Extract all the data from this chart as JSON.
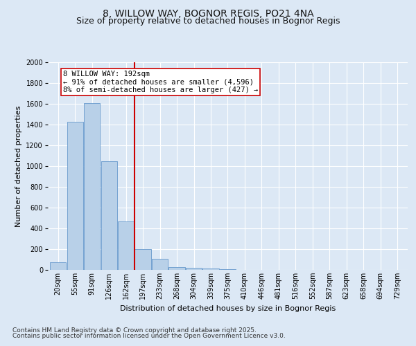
{
  "title1": "8, WILLOW WAY, BOGNOR REGIS, PO21 4NA",
  "title2": "Size of property relative to detached houses in Bognor Regis",
  "xlabel": "Distribution of detached houses by size in Bognor Regis",
  "ylabel": "Number of detached properties",
  "categories": [
    "20sqm",
    "55sqm",
    "91sqm",
    "126sqm",
    "162sqm",
    "197sqm",
    "233sqm",
    "268sqm",
    "304sqm",
    "339sqm",
    "375sqm",
    "410sqm",
    "446sqm",
    "481sqm",
    "516sqm",
    "552sqm",
    "587sqm",
    "623sqm",
    "658sqm",
    "694sqm",
    "729sqm"
  ],
  "values": [
    75,
    1430,
    1610,
    1050,
    470,
    200,
    105,
    30,
    18,
    12,
    10,
    0,
    0,
    0,
    0,
    0,
    0,
    0,
    0,
    0,
    0
  ],
  "bar_color": "#b8d0e8",
  "bar_edge_color": "#6699cc",
  "vline_label": "8 WILLOW WAY: 192sqm",
  "annotation_line1": "← 91% of detached houses are smaller (4,596)",
  "annotation_line2": "8% of semi-detached houses are larger (427) →",
  "vline_color": "#cc0000",
  "annotation_box_color": "#ffffff",
  "annotation_box_edge": "#cc0000",
  "ylim": [
    0,
    2000
  ],
  "yticks": [
    0,
    200,
    400,
    600,
    800,
    1000,
    1200,
    1400,
    1600,
    1800,
    2000
  ],
  "footer_line1": "Contains HM Land Registry data © Crown copyright and database right 2025.",
  "footer_line2": "Contains public sector information licensed under the Open Government Licence v3.0.",
  "bg_color": "#dce8f5",
  "plot_bg_color": "#dce8f5",
  "title_fontsize": 10,
  "subtitle_fontsize": 9,
  "tick_fontsize": 7,
  "label_fontsize": 8,
  "footer_fontsize": 6.5,
  "annotation_fontsize": 7.5
}
